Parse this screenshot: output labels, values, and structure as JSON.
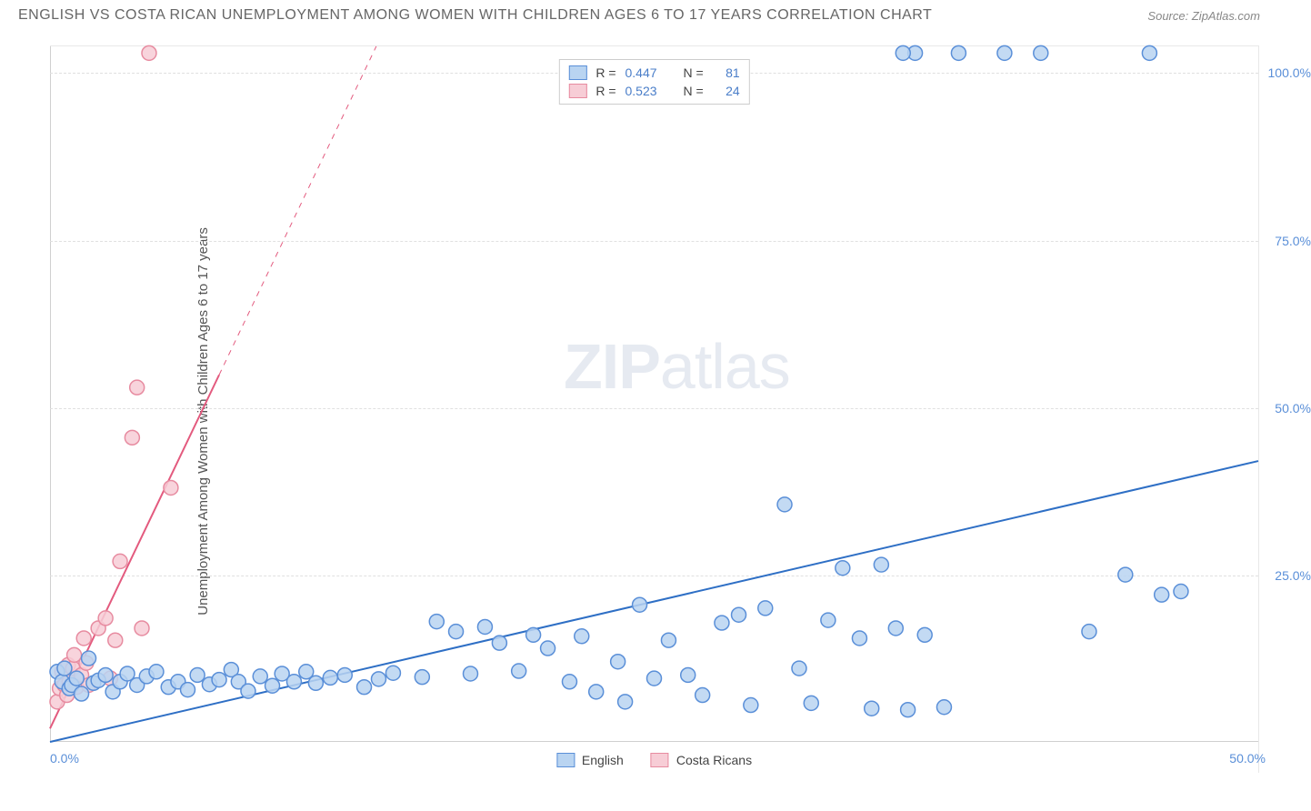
{
  "header": {
    "title": "ENGLISH VS COSTA RICAN UNEMPLOYMENT AMONG WOMEN WITH CHILDREN AGES 6 TO 17 YEARS CORRELATION CHART",
    "source_label": "Source:",
    "source_value": "ZipAtlas.com"
  },
  "ylabel": "Unemployment Among Women with Children Ages 6 to 17 years",
  "watermark": {
    "zip": "ZIP",
    "rest": "atlas"
  },
  "chart": {
    "type": "scatter",
    "background_color": "#ffffff",
    "grid_color": "#e0e0e0",
    "xlim": [
      0,
      50
    ],
    "ylim": [
      0,
      104
    ],
    "yticks": [
      {
        "v": 25,
        "label": "25.0%"
      },
      {
        "v": 50,
        "label": "50.0%"
      },
      {
        "v": 75,
        "label": "75.0%"
      },
      {
        "v": 100,
        "label": "100.0%"
      }
    ],
    "xticks": [
      {
        "v": 0,
        "label": "0.0%",
        "align": "left"
      },
      {
        "v": 50,
        "label": "50.0%",
        "align": "right"
      }
    ],
    "marker_radius": 8,
    "marker_stroke_width": 1.5,
    "series": [
      {
        "name": "English",
        "fill": "#b9d4f1",
        "stroke": "#5a8fd8",
        "trend_color": "#2e6fc5",
        "trend_width": 2,
        "r": "0.447",
        "n": "81",
        "trend": {
          "x1": 0,
          "y1": 0,
          "x2": 50,
          "y2": 42
        },
        "trend_dash_after_x": null,
        "points": [
          [
            0.3,
            10.5
          ],
          [
            0.5,
            9.0
          ],
          [
            0.6,
            11.0
          ],
          [
            0.8,
            8.0
          ],
          [
            0.9,
            8.5
          ],
          [
            1.1,
            9.5
          ],
          [
            1.3,
            7.2
          ],
          [
            1.6,
            12.5
          ],
          [
            1.8,
            8.8
          ],
          [
            2.0,
            9.2
          ],
          [
            2.3,
            10.0
          ],
          [
            2.6,
            7.5
          ],
          [
            2.9,
            9.0
          ],
          [
            3.2,
            10.2
          ],
          [
            3.6,
            8.5
          ],
          [
            4.0,
            9.8
          ],
          [
            4.4,
            10.5
          ],
          [
            4.9,
            8.2
          ],
          [
            5.3,
            9.0
          ],
          [
            5.7,
            7.8
          ],
          [
            6.1,
            10.0
          ],
          [
            6.6,
            8.6
          ],
          [
            7.0,
            9.3
          ],
          [
            7.5,
            10.8
          ],
          [
            7.8,
            9.0
          ],
          [
            8.2,
            7.6
          ],
          [
            8.7,
            9.8
          ],
          [
            9.2,
            8.4
          ],
          [
            9.6,
            10.2
          ],
          [
            10.1,
            9.0
          ],
          [
            10.6,
            10.5
          ],
          [
            11.0,
            8.8
          ],
          [
            11.6,
            9.6
          ],
          [
            12.2,
            10.0
          ],
          [
            13.0,
            8.2
          ],
          [
            13.6,
            9.4
          ],
          [
            14.2,
            10.3
          ],
          [
            15.4,
            9.7
          ],
          [
            16.0,
            18.0
          ],
          [
            16.8,
            16.5
          ],
          [
            17.4,
            10.2
          ],
          [
            18.0,
            17.2
          ],
          [
            18.6,
            14.8
          ],
          [
            19.4,
            10.6
          ],
          [
            20.0,
            16.0
          ],
          [
            20.6,
            14.0
          ],
          [
            21.5,
            9.0
          ],
          [
            22.0,
            15.8
          ],
          [
            22.6,
            7.5
          ],
          [
            23.5,
            12.0
          ],
          [
            23.8,
            6.0
          ],
          [
            24.4,
            20.5
          ],
          [
            25.0,
            9.5
          ],
          [
            25.6,
            15.2
          ],
          [
            26.4,
            10.0
          ],
          [
            27.0,
            7.0
          ],
          [
            27.8,
            17.8
          ],
          [
            28.5,
            19.0
          ],
          [
            29.0,
            5.5
          ],
          [
            29.6,
            20.0
          ],
          [
            30.4,
            35.5
          ],
          [
            31.0,
            11.0
          ],
          [
            31.5,
            5.8
          ],
          [
            32.2,
            18.2
          ],
          [
            32.8,
            26.0
          ],
          [
            33.5,
            15.5
          ],
          [
            34.0,
            5.0
          ],
          [
            34.4,
            26.5
          ],
          [
            35.0,
            17.0
          ],
          [
            35.5,
            4.8
          ],
          [
            36.2,
            16.0
          ],
          [
            37.0,
            5.2
          ],
          [
            37.6,
            103
          ],
          [
            35.8,
            103
          ],
          [
            35.3,
            103
          ],
          [
            39.5,
            103
          ],
          [
            41.0,
            103
          ],
          [
            45.5,
            103
          ],
          [
            43.0,
            16.5
          ],
          [
            44.5,
            25.0
          ],
          [
            46.0,
            22.0
          ],
          [
            46.8,
            22.5
          ]
        ]
      },
      {
        "name": "Costa Ricans",
        "fill": "#f7cdd6",
        "stroke": "#e78ba0",
        "trend_color": "#e35a7e",
        "trend_width": 2,
        "r": "0.523",
        "n": "24",
        "trend": {
          "x1": 0,
          "y1": 2,
          "x2": 13.5,
          "y2": 104
        },
        "trend_dash_after_x": 7,
        "points": [
          [
            0.3,
            6.0
          ],
          [
            0.4,
            8.0
          ],
          [
            0.5,
            10.5
          ],
          [
            0.6,
            8.5
          ],
          [
            0.7,
            7.0
          ],
          [
            0.75,
            11.5
          ],
          [
            0.8,
            9.0
          ],
          [
            0.95,
            11.0
          ],
          [
            1.0,
            13.0
          ],
          [
            1.1,
            8.2
          ],
          [
            1.3,
            10.0
          ],
          [
            1.4,
            15.5
          ],
          [
            1.5,
            11.8
          ],
          [
            1.6,
            8.5
          ],
          [
            2.0,
            17.0
          ],
          [
            2.3,
            18.5
          ],
          [
            2.5,
            9.5
          ],
          [
            2.7,
            15.2
          ],
          [
            2.9,
            27.0
          ],
          [
            3.8,
            17.0
          ],
          [
            3.4,
            45.5
          ],
          [
            3.6,
            53.0
          ],
          [
            5.0,
            38.0
          ],
          [
            4.1,
            103
          ]
        ]
      }
    ]
  },
  "legend_top": {
    "r_prefix": "R =",
    "n_prefix": "N ="
  },
  "legend_bottom": {
    "series_0": "English",
    "series_1": "Costa Ricans"
  },
  "colors": {
    "title": "#666666",
    "axis_text": "#5a8fd8",
    "ylabel": "#555555"
  }
}
